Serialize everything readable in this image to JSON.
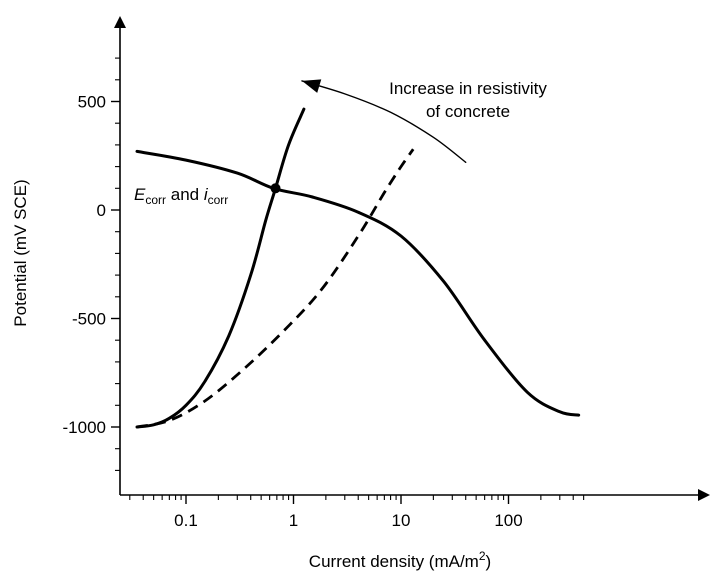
{
  "chart_data": {
    "type": "line",
    "title": "",
    "xlabel": {
      "text": "Current density (mA/m",
      "sup": "2",
      "tail": ")"
    },
    "ylabel": "Potential (mV SCE)",
    "x_scale": "log",
    "xlim": [
      0.025,
      1500
    ],
    "ylim": [
      -1300,
      850
    ],
    "x_ticks": [
      {
        "value": 0.1,
        "label": "0.1"
      },
      {
        "value": 1,
        "label": "1"
      },
      {
        "value": 10,
        "label": "10"
      },
      {
        "value": 100,
        "label": "100"
      }
    ],
    "x_minor_min": 0.03,
    "x_minor_max": 500,
    "y_ticks": [
      {
        "value": 500,
        "label": "500"
      },
      {
        "value": 0,
        "label": "0"
      },
      {
        "value": -500,
        "label": "-500"
      },
      {
        "value": -1000,
        "label": "-1000"
      }
    ],
    "y_minor_step": 100,
    "y_minor_min": -1200,
    "y_minor_max": 700,
    "grid": false,
    "series": [
      {
        "style": "solid",
        "points": [
          [
            0.035,
            270
          ],
          [
            0.1,
            230
          ],
          [
            0.3,
            170
          ],
          [
            0.65,
            100
          ],
          [
            1.5,
            60
          ],
          [
            4,
            -10
          ],
          [
            10,
            -120
          ],
          [
            25,
            -330
          ],
          [
            60,
            -600
          ],
          [
            150,
            -840
          ],
          [
            300,
            -930
          ],
          [
            450,
            -945
          ]
        ]
      },
      {
        "style": "solid",
        "points": [
          [
            0.035,
            -1000
          ],
          [
            0.05,
            -990
          ],
          [
            0.07,
            -960
          ],
          [
            0.1,
            -900
          ],
          [
            0.15,
            -790
          ],
          [
            0.25,
            -580
          ],
          [
            0.4,
            -300
          ],
          [
            0.55,
            -50
          ],
          [
            0.68,
            100
          ],
          [
            0.9,
            300
          ],
          [
            1.25,
            465
          ]
        ]
      },
      {
        "style": "dashed",
        "points": [
          [
            0.035,
            -1000
          ],
          [
            0.07,
            -970
          ],
          [
            0.15,
            -880
          ],
          [
            0.35,
            -730
          ],
          [
            0.8,
            -560
          ],
          [
            1.8,
            -370
          ],
          [
            4,
            -120
          ],
          [
            7,
            80
          ],
          [
            10,
            200
          ],
          [
            13,
            280
          ]
        ]
      },
      {
        "style": "solid-thin",
        "points": [
          [
            40,
            220
          ],
          [
            20,
            335
          ],
          [
            8,
            450
          ],
          [
            3,
            535
          ],
          [
            1.2,
            595
          ]
        ]
      }
    ],
    "intersection": {
      "x": 0.68,
      "y": 100,
      "label_main": "E",
      "label_sub": "corr",
      "label_mid": " and ",
      "label_main2": "i",
      "label_sub2": "corr"
    },
    "annotation": {
      "line1": "Increase in resistivity",
      "line2": "of concrete"
    }
  }
}
